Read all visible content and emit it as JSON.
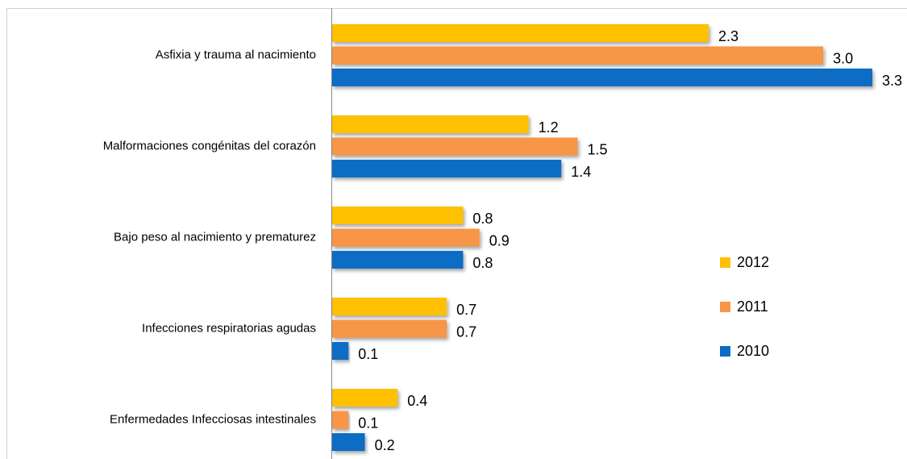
{
  "chart_data": {
    "type": "bar",
    "categories": [
      "Asfixia y trauma al nacimiento",
      "Malformaciones congénitas del corazón",
      "Bajo peso al nacimiento y prematurez",
      "Infecciones respiratorias agudas",
      "Enfermedades Infecciosas intestinales"
    ],
    "series": [
      {
        "name": "2012",
        "color": "#ffc000",
        "values": [
          2.3,
          1.2,
          0.8,
          0.7,
          0.4
        ],
        "value_labels": [
          "2.3",
          "1.2",
          "0.8",
          "0.7",
          "0.4"
        ]
      },
      {
        "name": "2011",
        "color": "#f79646",
        "values": [
          3.0,
          1.5,
          0.9,
          0.7,
          0.1
        ],
        "value_labels": [
          "3.0",
          "1.5",
          "0.9",
          "0.7",
          "0.1"
        ]
      },
      {
        "name": "2010",
        "color": "#0a6cc4",
        "values": [
          3.3,
          1.4,
          0.8,
          0.1,
          0.2
        ],
        "value_labels": [
          "3.3",
          "1.4",
          "0.8",
          "0.1",
          "0.2"
        ]
      }
    ]
  }
}
